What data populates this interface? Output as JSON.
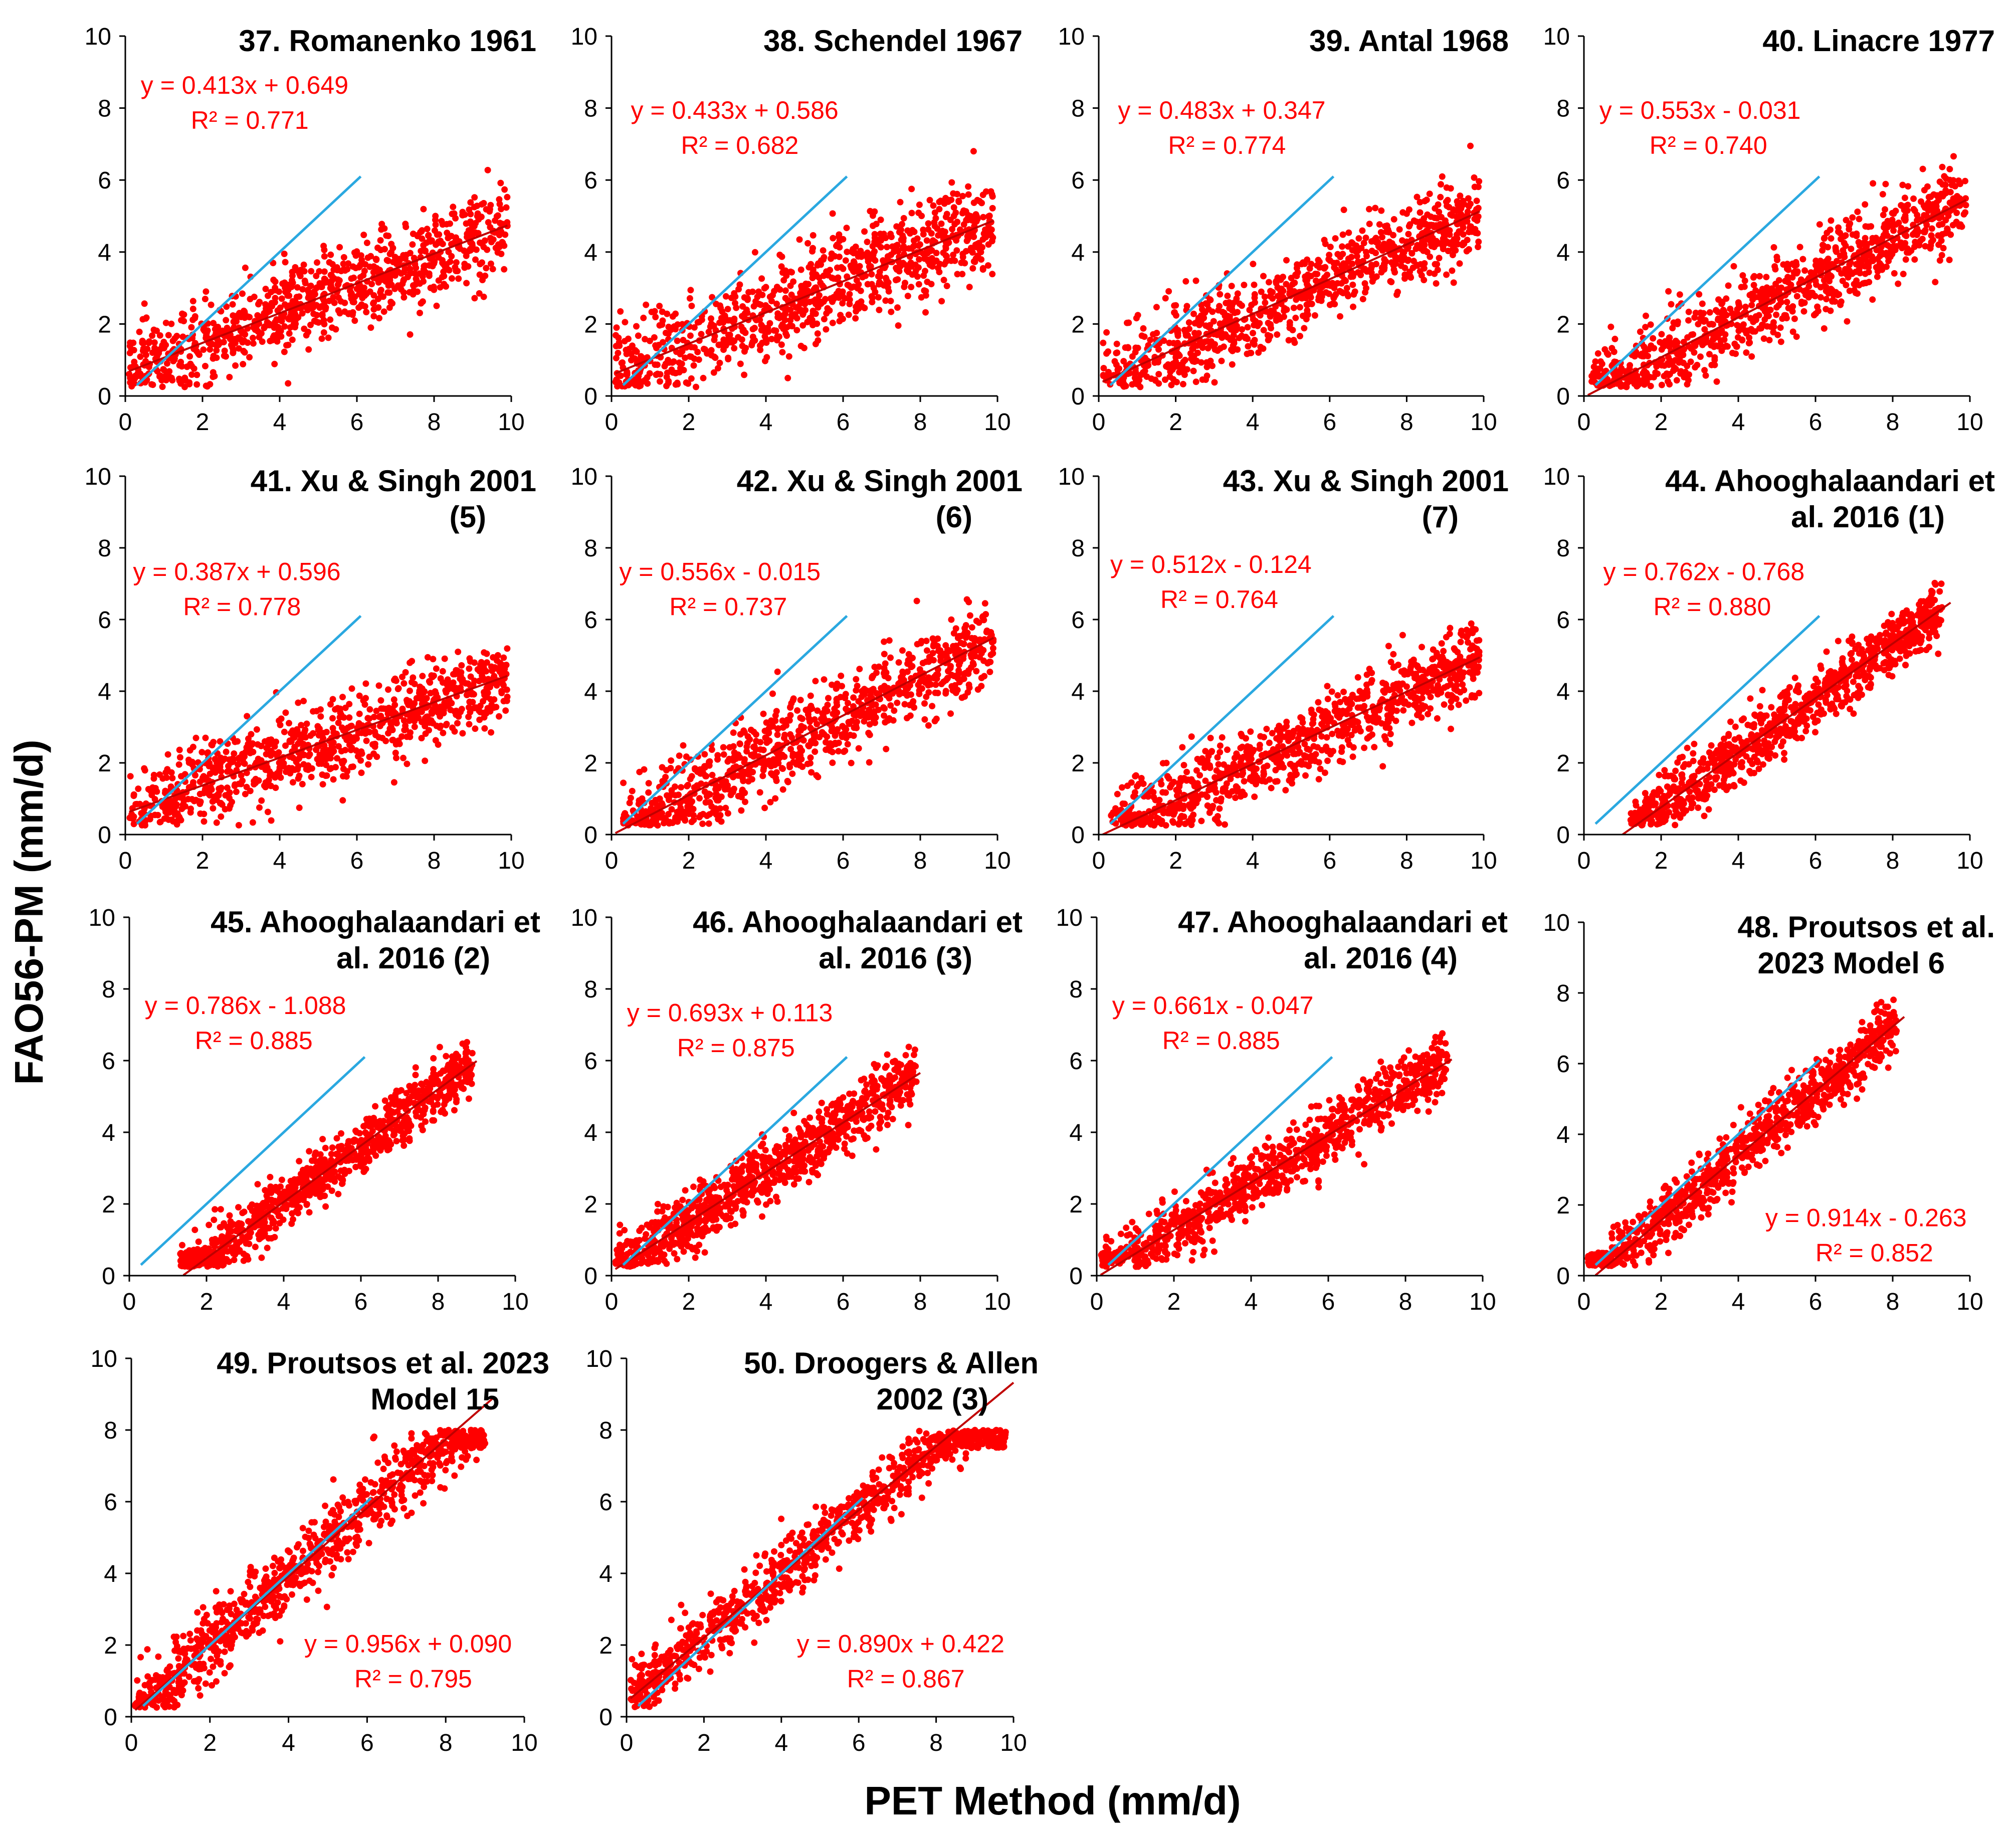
{
  "figure": {
    "ylabel": "FAO56-PM (mm/d)",
    "xlabel": "PET Method (mm/d)",
    "colors": {
      "points": "#ff0000",
      "trendline": "#c00000",
      "one_to_one": "#2aa8e0",
      "axis": "#000000"
    }
  },
  "chart_data": [
    {
      "type": "scatter",
      "title_lines": [
        "37. Romanenko 1961"
      ],
      "equation": "y = 0.413x + 0.649",
      "r2": "R² = 0.771",
      "slope": 0.413,
      "intercept": 0.649,
      "x_range": [
        0.1,
        9.9
      ],
      "cloud": {
        "x_min": 0.1,
        "x_max": 9.9,
        "spread": 1.1
      },
      "xlim": [
        0,
        10
      ],
      "ylim": [
        0,
        10
      ],
      "xticks": [
        "0",
        "2",
        "4",
        "6",
        "8",
        "10"
      ],
      "yticks": [
        "0",
        "2",
        "4",
        "6",
        "8",
        "10"
      ]
    },
    {
      "type": "scatter",
      "title_lines": [
        "38. Schendel 1967"
      ],
      "equation": "y = 0.433x + 0.586",
      "r2": "R² = 0.682",
      "slope": 0.433,
      "intercept": 0.586,
      "x_range": [
        0.1,
        9.9
      ],
      "cloud": {
        "x_min": 0.1,
        "x_max": 9.9,
        "spread": 1.2
      },
      "xlim": [
        0,
        10
      ],
      "ylim": [
        0,
        10
      ],
      "xticks": [
        "0",
        "2",
        "4",
        "6",
        "8",
        "10"
      ],
      "yticks": [
        "0",
        "2",
        "4",
        "6",
        "8",
        "10"
      ]
    },
    {
      "type": "scatter",
      "title_lines": [
        "39. Antal 1968"
      ],
      "equation": "y = 0.483x + 0.347",
      "r2": "R² = 0.774",
      "slope": 0.483,
      "intercept": 0.347,
      "x_range": [
        0.1,
        9.9
      ],
      "cloud": {
        "x_min": 0.1,
        "x_max": 9.9,
        "spread": 1.0
      },
      "xlim": [
        0,
        10
      ],
      "ylim": [
        0,
        10
      ],
      "xticks": [
        "0",
        "2",
        "4",
        "6",
        "8",
        "10"
      ],
      "yticks": [
        "0",
        "2",
        "4",
        "6",
        "8",
        "10"
      ]
    },
    {
      "type": "scatter",
      "title_lines": [
        "40. Linacre 1977"
      ],
      "equation": "y = 0.553x - 0.031",
      "r2": "R² = 0.740",
      "slope": 0.553,
      "intercept": -0.031,
      "x_range": [
        0.1,
        9.9
      ],
      "cloud": {
        "x_min": 0.2,
        "x_max": 9.9,
        "spread": 1.1
      },
      "xlim": [
        0,
        10
      ],
      "ylim": [
        0,
        10
      ],
      "xticks": [
        "0",
        "2",
        "4",
        "6",
        "8",
        "10"
      ],
      "yticks": [
        "0",
        "2",
        "4",
        "6",
        "8",
        "10"
      ]
    },
    {
      "type": "scatter",
      "title_lines": [
        "41. Xu & Singh 2001",
        "(5)"
      ],
      "equation": "y = 0.387x + 0.596",
      "r2": "R² = 0.778",
      "slope": 0.387,
      "intercept": 0.596,
      "x_range": [
        0.1,
        9.9
      ],
      "cloud": {
        "x_min": 0.1,
        "x_max": 9.9,
        "spread": 1.0
      },
      "xlim": [
        0,
        10
      ],
      "ylim": [
        0,
        10
      ],
      "xticks": [
        "0",
        "2",
        "4",
        "6",
        "8",
        "10"
      ],
      "yticks": [
        "0",
        "2",
        "4",
        "6",
        "8",
        "10"
      ]
    },
    {
      "type": "scatter",
      "title_lines": [
        "42. Xu & Singh 2001",
        "(6)"
      ],
      "equation": "y = 0.556x - 0.015",
      "r2": "R² = 0.737",
      "slope": 0.556,
      "intercept": -0.015,
      "x_range": [
        0.1,
        9.9
      ],
      "cloud": {
        "x_min": 0.3,
        "x_max": 9.9,
        "spread": 1.1
      },
      "xlim": [
        0,
        10
      ],
      "ylim": [
        0,
        10
      ],
      "xticks": [
        "0",
        "2",
        "4",
        "6",
        "8",
        "10"
      ],
      "yticks": [
        "0",
        "2",
        "4",
        "6",
        "8",
        "10"
      ]
    },
    {
      "type": "scatter",
      "title_lines": [
        "43. Xu & Singh 2001",
        "(7)"
      ],
      "equation": "y = 0.512x - 0.124",
      "r2": "R² = 0.764",
      "slope": 0.512,
      "intercept": -0.124,
      "x_range": [
        0.1,
        9.9
      ],
      "cloud": {
        "x_min": 0.3,
        "x_max": 9.9,
        "spread": 1.0
      },
      "xlim": [
        0,
        10
      ],
      "ylim": [
        0,
        10
      ],
      "xticks": [
        "0",
        "2",
        "4",
        "6",
        "8",
        "10"
      ],
      "yticks": [
        "0",
        "2",
        "4",
        "6",
        "8",
        "10"
      ]
    },
    {
      "type": "scatter",
      "title_lines": [
        "44. Ahooghalaandari et",
        "al. 2016 (1)"
      ],
      "equation": "y = 0.762x - 0.768",
      "r2": "R² = 0.880",
      "slope": 0.762,
      "intercept": -0.768,
      "x_range": [
        1.0,
        9.5
      ],
      "cloud": {
        "x_min": 1.2,
        "x_max": 9.3,
        "spread": 0.8
      },
      "xlim": [
        0,
        10
      ],
      "ylim": [
        0,
        10
      ],
      "xticks": [
        "0",
        "2",
        "4",
        "6",
        "8",
        "10"
      ],
      "yticks": [
        "0",
        "2",
        "4",
        "6",
        "8",
        "10"
      ]
    },
    {
      "type": "scatter",
      "title_lines": [
        "45. Ahooghalaandari et",
        "al. 2016 (2)"
      ],
      "equation": "y = 0.786x - 1.088",
      "r2": "R² = 0.885",
      "slope": 0.786,
      "intercept": -1.088,
      "x_range": [
        1.4,
        9.0
      ],
      "cloud": {
        "x_min": 1.3,
        "x_max": 8.9,
        "spread": 0.7
      },
      "xlim": [
        0,
        10
      ],
      "ylim": [
        0,
        10
      ],
      "xticks": [
        "0",
        "2",
        "4",
        "6",
        "8",
        "10"
      ],
      "yticks": [
        "0",
        "2",
        "4",
        "6",
        "8",
        "10"
      ]
    },
    {
      "type": "scatter",
      "title_lines": [
        "46. Ahooghalaandari et",
        "al. 2016 (3)"
      ],
      "equation": "y = 0.693x + 0.113",
      "r2": "R² = 0.875",
      "slope": 0.693,
      "intercept": 0.113,
      "x_range": [
        0.1,
        8.0
      ],
      "cloud": {
        "x_min": 0.1,
        "x_max": 7.9,
        "spread": 0.8
      },
      "xlim": [
        0,
        10
      ],
      "ylim": [
        0,
        10
      ],
      "xticks": [
        "0",
        "2",
        "4",
        "6",
        "8",
        "10"
      ],
      "yticks": [
        "0",
        "2",
        "4",
        "6",
        "8",
        "10"
      ]
    },
    {
      "type": "scatter",
      "title_lines": [
        "47. Ahooghalaandari et",
        "al. 2016 (4)"
      ],
      "equation": "y = 0.661x - 0.047",
      "r2": "R² = 0.885",
      "slope": 0.661,
      "intercept": -0.047,
      "x_range": [
        0.1,
        9.2
      ],
      "cloud": {
        "x_min": 0.1,
        "x_max": 9.1,
        "spread": 0.8
      },
      "xlim": [
        0,
        10
      ],
      "ylim": [
        0,
        10
      ],
      "xticks": [
        "0",
        "2",
        "4",
        "6",
        "8",
        "10"
      ],
      "yticks": [
        "0",
        "2",
        "4",
        "6",
        "8",
        "10"
      ]
    },
    {
      "type": "scatter",
      "title_lines": [
        "48. Proutsos et al.",
        "2023 Model 6"
      ],
      "equation": "y = 0.914x - 0.263",
      "r2": "R² = 0.852",
      "slope": 0.914,
      "intercept": -0.263,
      "x_range": [
        0.3,
        8.3
      ],
      "cloud": {
        "x_min": 0.1,
        "x_max": 8.1,
        "spread": 0.8
      },
      "xlim": [
        0,
        10
      ],
      "ylim": [
        0,
        10
      ],
      "xticks": [
        "0",
        "2",
        "4",
        "6",
        "8",
        "10"
      ],
      "yticks": [
        "0",
        "2",
        "4",
        "6",
        "8",
        "10"
      ]
    },
    {
      "type": "scatter",
      "title_lines": [
        "49. Proutsos et al. 2023",
        "Model 15"
      ],
      "equation": "y = 0.956x + 0.090",
      "r2": "R² = 0.795",
      "slope": 0.956,
      "intercept": 0.09,
      "x_range": [
        0.1,
        9.2
      ],
      "cloud": {
        "x_min": 0.1,
        "x_max": 9.0,
        "spread": 0.9
      },
      "xlim": [
        0,
        10
      ],
      "ylim": [
        0,
        10
      ],
      "xticks": [
        "0",
        "2",
        "4",
        "6",
        "8",
        "10"
      ],
      "yticks": [
        "0",
        "2",
        "4",
        "6",
        "8",
        "10"
      ]
    },
    {
      "type": "scatter",
      "title_lines": [
        "50. Droogers & Allen",
        "2002 (3)"
      ],
      "equation": "y = 0.890x + 0.422",
      "r2": "R² = 0.867",
      "slope": 0.89,
      "intercept": 0.422,
      "x_range": [
        0.1,
        10.0
      ],
      "cloud": {
        "x_min": 0.1,
        "x_max": 9.8,
        "spread": 0.8
      },
      "xlim": [
        0,
        10
      ],
      "ylim": [
        0,
        10
      ],
      "xticks": [
        "0",
        "2",
        "4",
        "6",
        "8",
        "10"
      ],
      "yticks": [
        "0",
        "2",
        "4",
        "6",
        "8",
        "10"
      ]
    }
  ]
}
